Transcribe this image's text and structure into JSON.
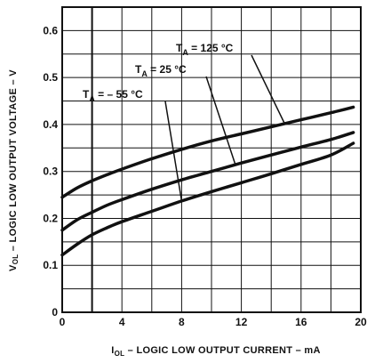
{
  "chart_data": {
    "type": "line",
    "xlabel": "I_OL – LOGIC LOW OUTPUT CURRENT – mA",
    "xlabel_parts": {
      "main": "I",
      "sub": "OL",
      "rest": " – LOGIC LOW OUTPUT CURRENT – mA"
    },
    "ylabel": "V_OL – LOGIC LOW OUTPUT VOLTAGE – V",
    "ylabel_parts": {
      "main": "V",
      "sub": "OL",
      "rest": " – LOGIC LOW OUTPUT VOLTAGE – V"
    },
    "xlim": [
      0,
      20
    ],
    "ylim": [
      0,
      0.65
    ],
    "xticks": [
      "0",
      "4",
      "8",
      "12",
      "16",
      "20"
    ],
    "yticks": [
      "0",
      "0.1",
      "0.2",
      "0.3",
      "0.4",
      "0.5",
      "0.6"
    ],
    "grid": true,
    "series": [
      {
        "name": "T_A = 125 °C",
        "label_main": "T",
        "label_sub": "A",
        "label_rest": " = 125 °C",
        "x": [
          0,
          1,
          2,
          3,
          4,
          6,
          8,
          10,
          12,
          14,
          16,
          18,
          19.5
        ],
        "y": [
          0.245,
          0.265,
          0.28,
          0.293,
          0.305,
          0.327,
          0.347,
          0.365,
          0.38,
          0.395,
          0.41,
          0.425,
          0.437
        ]
      },
      {
        "name": "T_A = 25 °C",
        "label_main": "T",
        "label_sub": "A",
        "label_rest": " = 25 °C",
        "x": [
          0,
          1,
          2,
          3,
          4,
          6,
          8,
          10,
          12,
          14,
          16,
          18,
          19.5
        ],
        "y": [
          0.175,
          0.197,
          0.213,
          0.228,
          0.24,
          0.262,
          0.282,
          0.3,
          0.318,
          0.335,
          0.352,
          0.368,
          0.383
        ]
      },
      {
        "name": "T_A = – 55 °C",
        "label_main": "T",
        "label_sub": "A",
        "label_rest": " = – 55 °C",
        "x": [
          0,
          1,
          2,
          3,
          4,
          6,
          8,
          10,
          12,
          14,
          16,
          18,
          19.5
        ],
        "y": [
          0.122,
          0.145,
          0.165,
          0.18,
          0.193,
          0.215,
          0.237,
          0.257,
          0.276,
          0.295,
          0.315,
          0.335,
          0.36
        ]
      }
    ]
  }
}
